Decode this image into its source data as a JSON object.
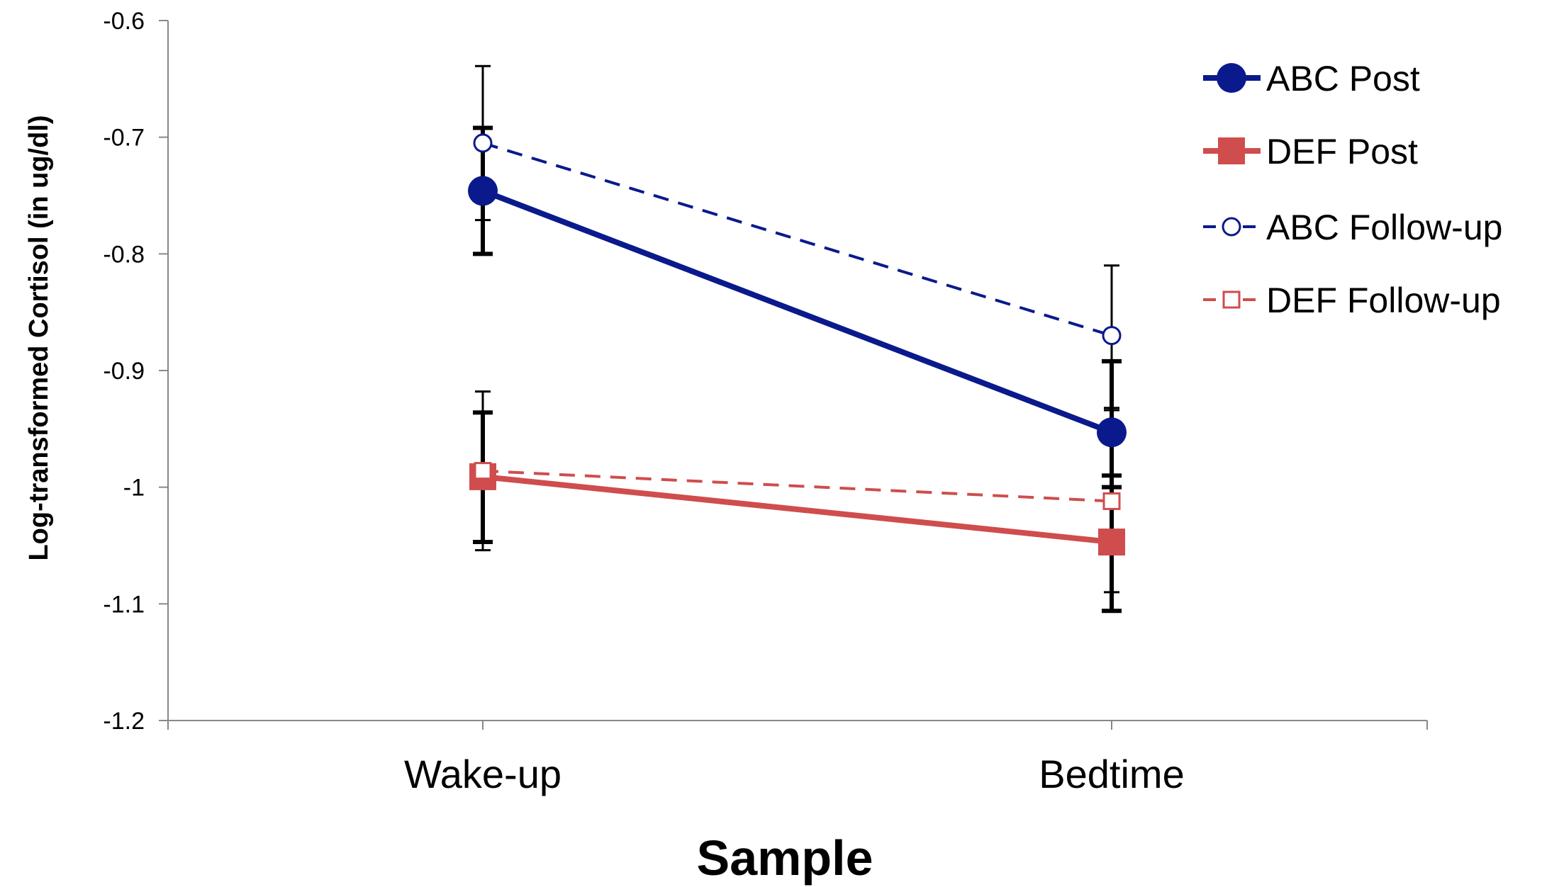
{
  "chart_data": {
    "type": "line",
    "title": "",
    "xlabel": "Sample",
    "ylabel": "Log-transformed Cortisol (in ug/dl)",
    "categories": [
      "Wake-up",
      "Bedtime"
    ],
    "ylim": [
      -1.2,
      -0.6
    ],
    "yticks": [
      -0.6,
      -0.7,
      -0.8,
      -0.9,
      -1,
      -1.1,
      -1.2
    ],
    "ytick_labels": [
      "-0.6",
      "-0.7",
      "-0.8",
      "-0.9",
      "-1",
      "-1.1",
      "-1.2"
    ],
    "grid": false,
    "legend_position": "top-right",
    "series": [
      {
        "name": "ABC Post",
        "values": [
          -0.746,
          -0.953
        ],
        "error_low": [
          -0.8,
          -1.0
        ],
        "error_high": [
          -0.692,
          -0.892
        ],
        "color": "#0a1a8c",
        "line_style": "solid",
        "marker": "filled-circle"
      },
      {
        "name": "DEF Post",
        "values": [
          -0.991,
          -1.047
        ],
        "error_low": [
          -1.047,
          -1.106
        ],
        "error_high": [
          -0.936,
          -0.99
        ],
        "color": "#cf4d4d",
        "line_style": "solid",
        "marker": "filled-square"
      },
      {
        "name": "ABC Follow-up",
        "values": [
          -0.705,
          -0.87
        ],
        "error_low": [
          -0.771,
          -0.932
        ],
        "error_high": [
          -0.639,
          -0.81
        ],
        "color": "#0a1a8c",
        "line_style": "dashed",
        "marker": "open-circle"
      },
      {
        "name": "DEF Follow-up",
        "values": [
          -0.986,
          -1.012
        ],
        "error_low": [
          -1.054,
          -1.09
        ],
        "error_high": [
          -0.918,
          -0.934
        ],
        "color": "#cf4d4d",
        "line_style": "dashed",
        "marker": "open-square"
      }
    ]
  }
}
